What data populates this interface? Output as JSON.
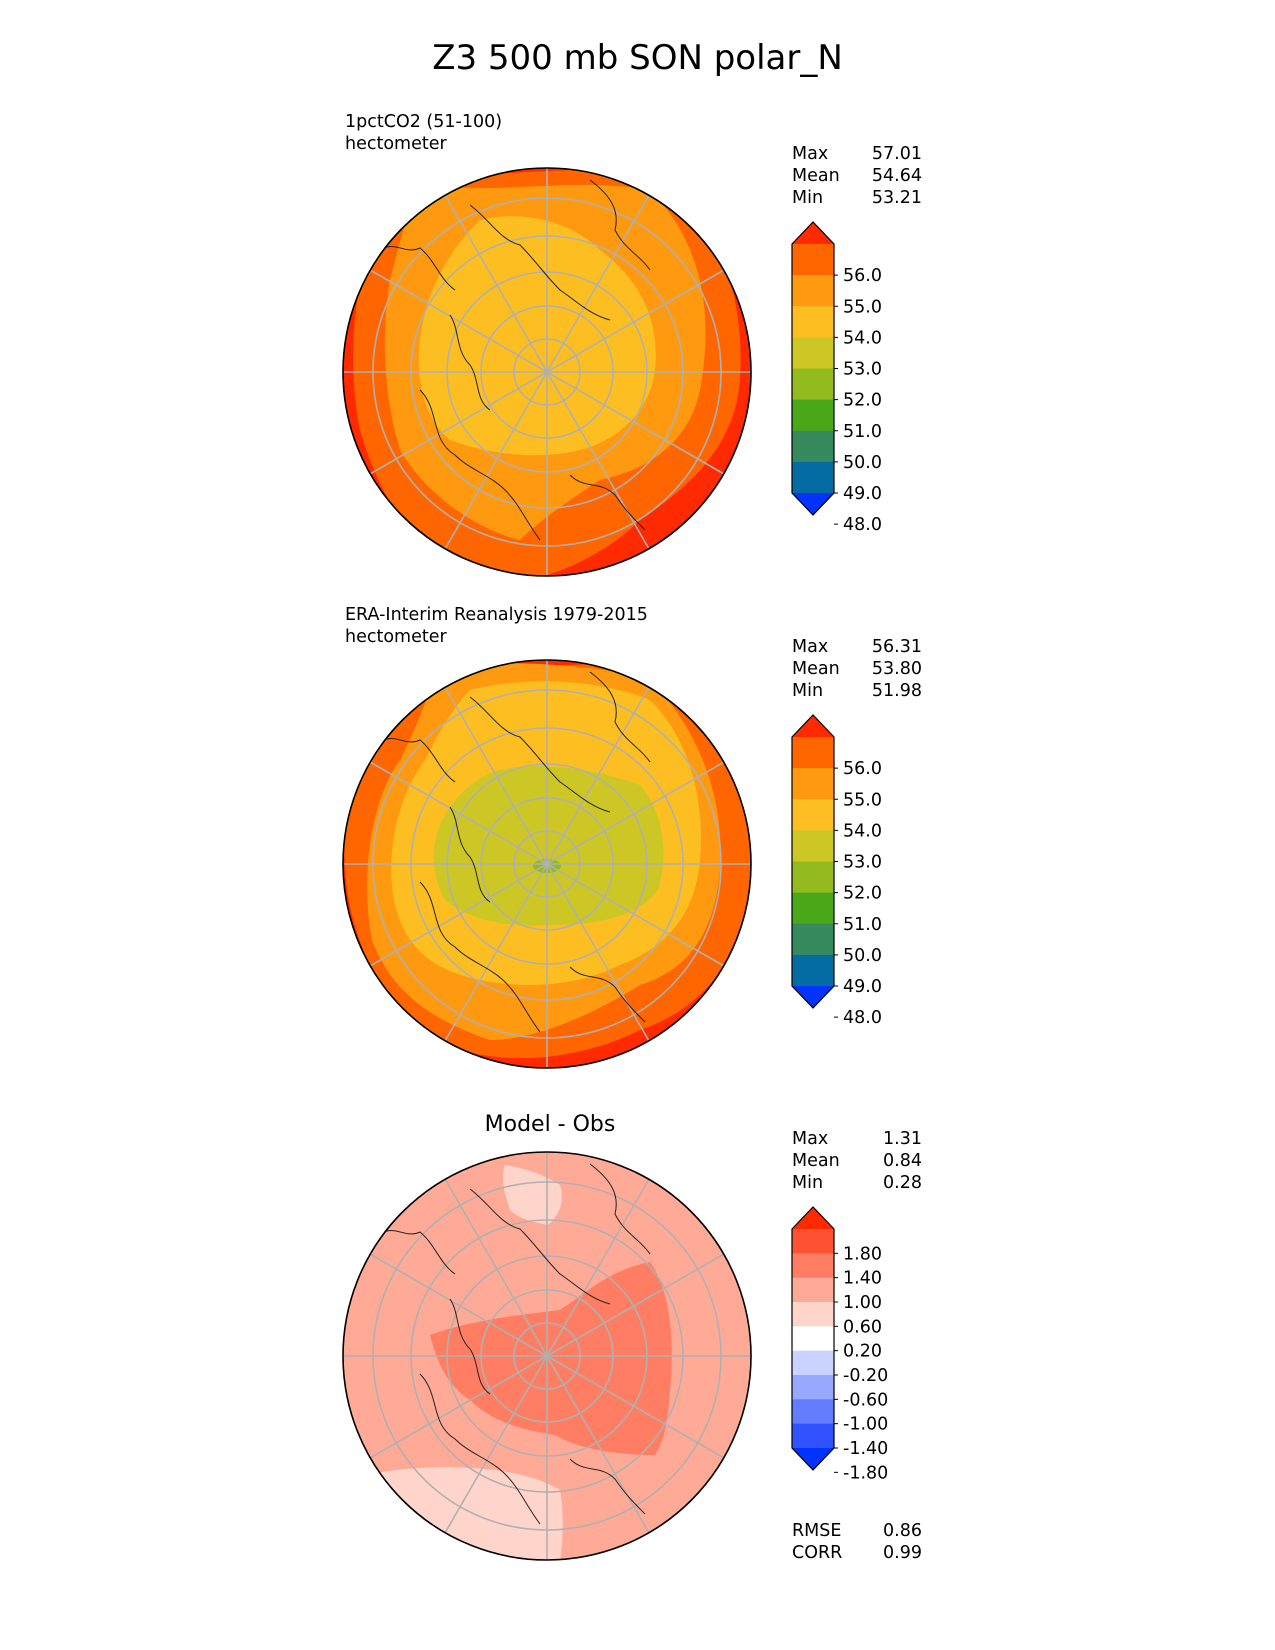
{
  "figure": {
    "title": "Z3 500 mb SON polar_N"
  },
  "chart_data": [
    {
      "type": "heatmap",
      "projection": "north-polar-stereographic",
      "title_lines": [
        "1pctCO2 (51-100)",
        "hectometer"
      ],
      "stats": [
        {
          "label": "Max",
          "value": "57.01"
        },
        {
          "label": "Mean",
          "value": "54.64"
        },
        {
          "label": "Min",
          "value": "53.21"
        }
      ],
      "colorbar": {
        "ticks": [
          "56.0",
          "55.0",
          "54.0",
          "53.0",
          "52.0",
          "51.0",
          "50.0",
          "49.0",
          "48.0"
        ],
        "colors": [
          "#ff2a00",
          "#ff6600",
          "#ff9a10",
          "#fdbe22",
          "#cdc726",
          "#93bb1e",
          "#4aa818",
          "#378a5e",
          "#046ca2",
          "#0033ff"
        ],
        "extend": "both"
      },
      "field_bands": [
        {
          "level": 56.0,
          "color": "#ff2a00"
        },
        {
          "level": 55.0,
          "color": "#ff6600"
        },
        {
          "level": 54.0,
          "color": "#ff9a10"
        },
        {
          "level": 53.0,
          "color": "#fdbe22"
        }
      ]
    },
    {
      "type": "heatmap",
      "projection": "north-polar-stereographic",
      "title_lines": [
        "ERA-Interim Reanalysis 1979-2015",
        "hectometer"
      ],
      "stats": [
        {
          "label": "Max",
          "value": "56.31"
        },
        {
          "label": "Mean",
          "value": "53.80"
        },
        {
          "label": "Min",
          "value": "51.98"
        }
      ],
      "colorbar": {
        "ticks": [
          "56.0",
          "55.0",
          "54.0",
          "53.0",
          "52.0",
          "51.0",
          "50.0",
          "49.0",
          "48.0"
        ],
        "colors": [
          "#ff2a00",
          "#ff6600",
          "#ff9a10",
          "#fdbe22",
          "#cdc726",
          "#93bb1e",
          "#4aa818",
          "#378a5e",
          "#046ca2",
          "#0033ff"
        ],
        "extend": "both"
      },
      "field_bands": [
        {
          "level": 56.0,
          "color": "#ff2a00"
        },
        {
          "level": 55.0,
          "color": "#ff6600"
        },
        {
          "level": 54.0,
          "color": "#ff9a10"
        },
        {
          "level": 53.0,
          "color": "#fdbe22"
        },
        {
          "level": 52.0,
          "color": "#cdc726"
        },
        {
          "level": 51.0,
          "color": "#93bb1e"
        }
      ]
    },
    {
      "type": "heatmap",
      "projection": "north-polar-stereographic",
      "title": "Model - Obs",
      "stats": [
        {
          "label": "Max",
          "value": "1.31"
        },
        {
          "label": "Mean",
          "value": "0.84"
        },
        {
          "label": "Min",
          "value": "0.28"
        }
      ],
      "metrics": [
        {
          "label": "RMSE",
          "value": "0.86"
        },
        {
          "label": "CORR",
          "value": "0.99"
        }
      ],
      "colorbar": {
        "ticks": [
          "1.80",
          "1.40",
          "1.00",
          "0.60",
          "0.20",
          "-0.20",
          "-0.60",
          "-1.00",
          "-1.40",
          "-1.80"
        ],
        "colors": [
          "#ff2a00",
          "#ff5133",
          "#ff7d62",
          "#ffaa96",
          "#ffd5cb",
          "#ffffff",
          "#cad3ff",
          "#97a8ff",
          "#647dff",
          "#3152ff",
          "#0033ff"
        ],
        "extend": "both"
      },
      "field_bands": [
        {
          "level": 1.0,
          "color": "#ff7d62"
        },
        {
          "level": 0.6,
          "color": "#ffaa96"
        },
        {
          "level": 0.2,
          "color": "#ffd5cb"
        }
      ]
    }
  ]
}
